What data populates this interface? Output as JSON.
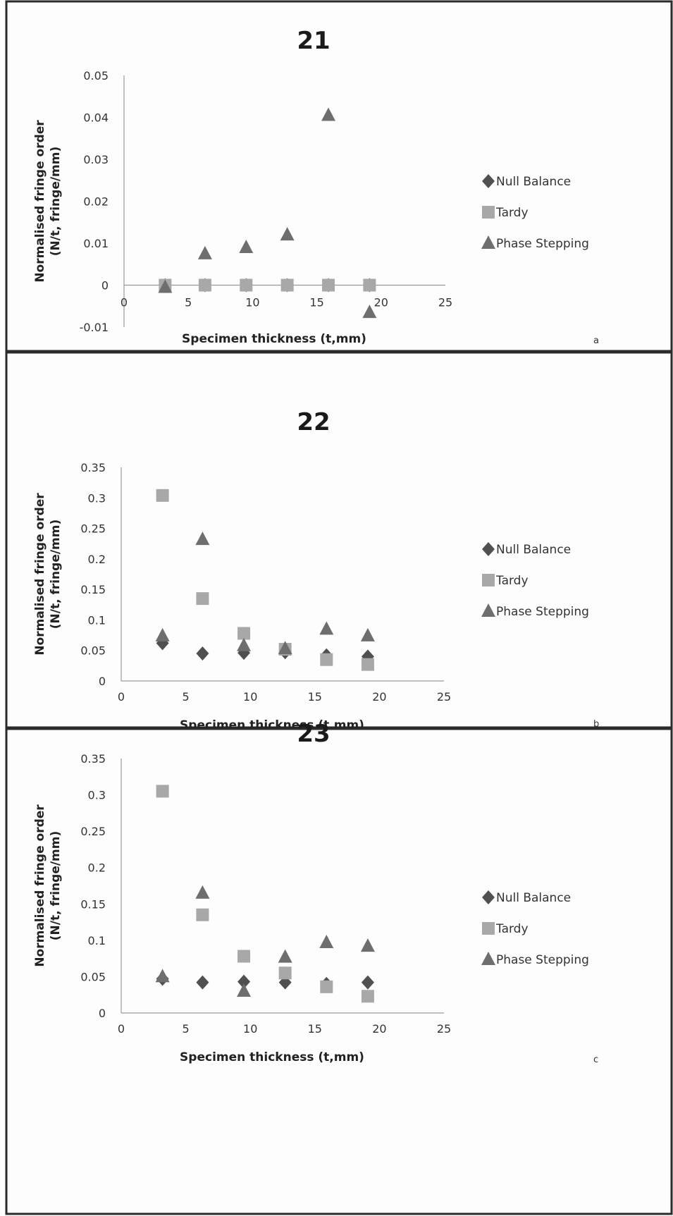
{
  "chart_data": [
    {
      "type": "scatter",
      "title": "21",
      "xlabel": "Specimen thickness (t,mm)",
      "ylabel": [
        "Normalised fringe order",
        "(N/t, fringe/mm)"
      ],
      "xlim": [
        0,
        25
      ],
      "ylim": [
        -0.01,
        0.05
      ],
      "xticks": [
        "0",
        "5",
        "10",
        "15",
        "20",
        "25"
      ],
      "yticks": [
        "-0.01",
        "0",
        "0.01",
        "0.02",
        "0.03",
        "0.04",
        "0.05"
      ],
      "grid": false,
      "legend_position": "right",
      "panel_letter": "a",
      "series": [
        {
          "name": "Null Balance",
          "marker": "diamond",
          "color": "#505050",
          "points": [
            [
              3.2,
              0
            ],
            [
              6.3,
              0
            ],
            [
              9.5,
              0
            ],
            [
              12.7,
              0
            ],
            [
              15.9,
              0
            ],
            [
              19.1,
              0
            ]
          ]
        },
        {
          "name": "Tardy",
          "marker": "square",
          "color": "#a8a8a8",
          "points": [
            [
              3.2,
              0
            ],
            [
              6.3,
              0
            ],
            [
              9.5,
              0
            ],
            [
              12.7,
              0
            ],
            [
              15.9,
              0
            ],
            [
              19.1,
              0
            ]
          ]
        },
        {
          "name": "Phase Stepping",
          "marker": "triangle",
          "color": "#6e6e6e",
          "points": [
            [
              3.2,
              -0.0005
            ],
            [
              6.3,
              0.0075
            ],
            [
              9.5,
              0.009
            ],
            [
              12.7,
              0.012
            ],
            [
              15.9,
              0.0405
            ],
            [
              19.1,
              -0.0065
            ]
          ]
        }
      ]
    },
    {
      "type": "scatter",
      "title": "22",
      "xlabel": "Specimen thickness (t,mm)",
      "ylabel": [
        "Normalised fringe order",
        "(N/t, fringe/mm)"
      ],
      "xlim": [
        0,
        25
      ],
      "ylim": [
        0,
        0.35
      ],
      "xticks": [
        "0",
        "5",
        "10",
        "15",
        "20",
        "25"
      ],
      "yticks": [
        "0",
        "0.05",
        "0.1",
        "0.15",
        "0.2",
        "0.25",
        "0.3",
        "0.35"
      ],
      "grid": false,
      "legend_position": "right",
      "panel_letter": "b",
      "series": [
        {
          "name": "Null Balance",
          "marker": "diamond",
          "color": "#505050",
          "points": [
            [
              3.2,
              0.062
            ],
            [
              6.3,
              0.045
            ],
            [
              9.5,
              0.046
            ],
            [
              12.7,
              0.047
            ],
            [
              15.9,
              0.042
            ],
            [
              19.1,
              0.04
            ]
          ]
        },
        {
          "name": "Tardy",
          "marker": "square",
          "color": "#a8a8a8",
          "points": [
            [
              3.2,
              0.304
            ],
            [
              6.3,
              0.135
            ],
            [
              9.5,
              0.078
            ],
            [
              12.7,
              0.052
            ],
            [
              15.9,
              0.035
            ],
            [
              19.1,
              0.027
            ]
          ]
        },
        {
          "name": "Phase Stepping",
          "marker": "triangle",
          "color": "#6e6e6e",
          "points": [
            [
              3.2,
              0.074
            ],
            [
              6.3,
              0.232
            ],
            [
              9.5,
              0.058
            ],
            [
              12.7,
              0.053
            ],
            [
              15.9,
              0.085
            ],
            [
              19.1,
              0.074
            ]
          ]
        }
      ]
    },
    {
      "type": "scatter",
      "title": "23",
      "xlabel": "Specimen thickness (t,mm)",
      "ylabel": [
        "Normalised fringe order",
        "(N/t, fringe/mm)"
      ],
      "xlim": [
        0,
        25
      ],
      "ylim": [
        0,
        0.35
      ],
      "xticks": [
        "0",
        "5",
        "10",
        "15",
        "20",
        "25"
      ],
      "yticks": [
        "0",
        "0.05",
        "0.1",
        "0.15",
        "0.2",
        "0.25",
        "0.3",
        "0.35"
      ],
      "grid": false,
      "legend_position": "right",
      "panel_letter": "c",
      "series": [
        {
          "name": "Null Balance",
          "marker": "diamond",
          "color": "#505050",
          "points": [
            [
              3.2,
              0.047
            ],
            [
              6.3,
              0.042
            ],
            [
              9.5,
              0.043
            ],
            [
              12.7,
              0.042
            ],
            [
              15.9,
              0.04
            ],
            [
              19.1,
              0.042
            ]
          ]
        },
        {
          "name": "Tardy",
          "marker": "square",
          "color": "#a8a8a8",
          "points": [
            [
              3.2,
              0.305
            ],
            [
              6.3,
              0.135
            ],
            [
              9.5,
              0.078
            ],
            [
              12.7,
              0.055
            ],
            [
              15.9,
              0.036
            ],
            [
              19.1,
              0.023
            ]
          ]
        },
        {
          "name": "Phase Stepping",
          "marker": "triangle",
          "color": "#6e6e6e",
          "points": [
            [
              3.2,
              0.05
            ],
            [
              6.3,
              0.165
            ],
            [
              9.5,
              0.03
            ],
            [
              12.7,
              0.077
            ],
            [
              15.9,
              0.097
            ],
            [
              19.1,
              0.092
            ]
          ]
        }
      ]
    }
  ]
}
